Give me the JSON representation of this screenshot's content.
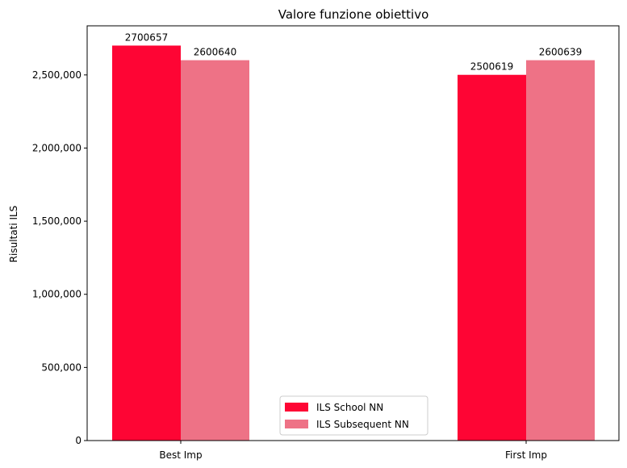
{
  "chart_data": {
    "type": "bar",
    "title": "Valore funzione obiettivo",
    "xlabel": "",
    "ylabel": "Risultati ILS",
    "categories": [
      "Best Imp",
      "First Imp"
    ],
    "series": [
      {
        "name": "ILS School NN",
        "values": [
          2700657,
          2500619
        ],
        "color": "#fe0534"
      },
      {
        "name": "ILS Subsequent NN",
        "values": [
          2600640,
          2600639
        ],
        "color": "#ee7286"
      }
    ],
    "ylim": [
      0,
      2835690
    ],
    "yticks": [
      0,
      500000,
      1000000,
      1500000,
      2000000,
      2500000
    ],
    "ytick_labels": [
      "0",
      "500,000",
      "1,000,000",
      "1,500,000",
      "2,000,000",
      "2,500,000"
    ],
    "grid": false,
    "legend_position": "bottom-center"
  }
}
